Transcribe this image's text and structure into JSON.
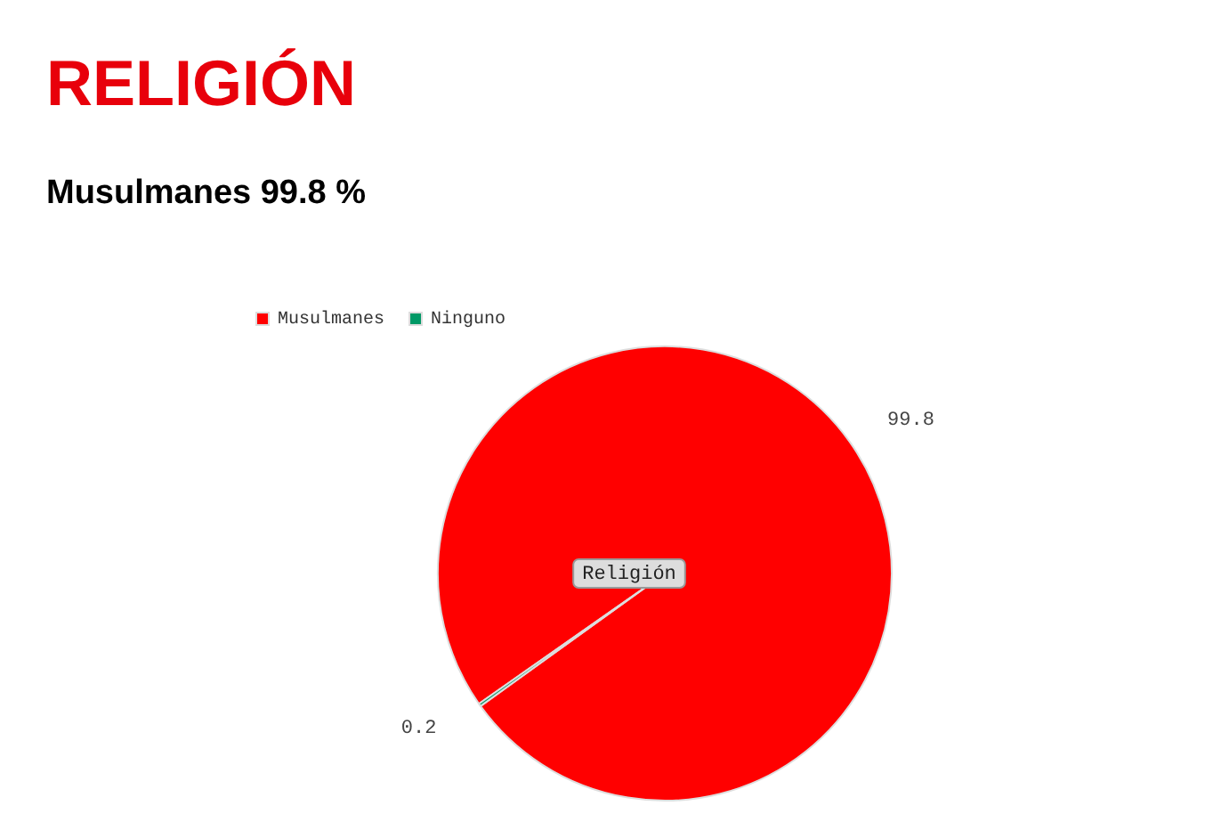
{
  "chart_data": {
    "type": "pie",
    "title": "RELIGIÓN",
    "subtitle": "Musulmanes 99.8 %",
    "categories": [
      "Musulmanes",
      "Ninguno"
    ],
    "values": [
      99.8,
      0.2
    ],
    "colors": [
      "#ff0000",
      "#009966"
    ],
    "data_labels": true,
    "legend": "top left",
    "annotations": [
      "Religión"
    ]
  }
}
